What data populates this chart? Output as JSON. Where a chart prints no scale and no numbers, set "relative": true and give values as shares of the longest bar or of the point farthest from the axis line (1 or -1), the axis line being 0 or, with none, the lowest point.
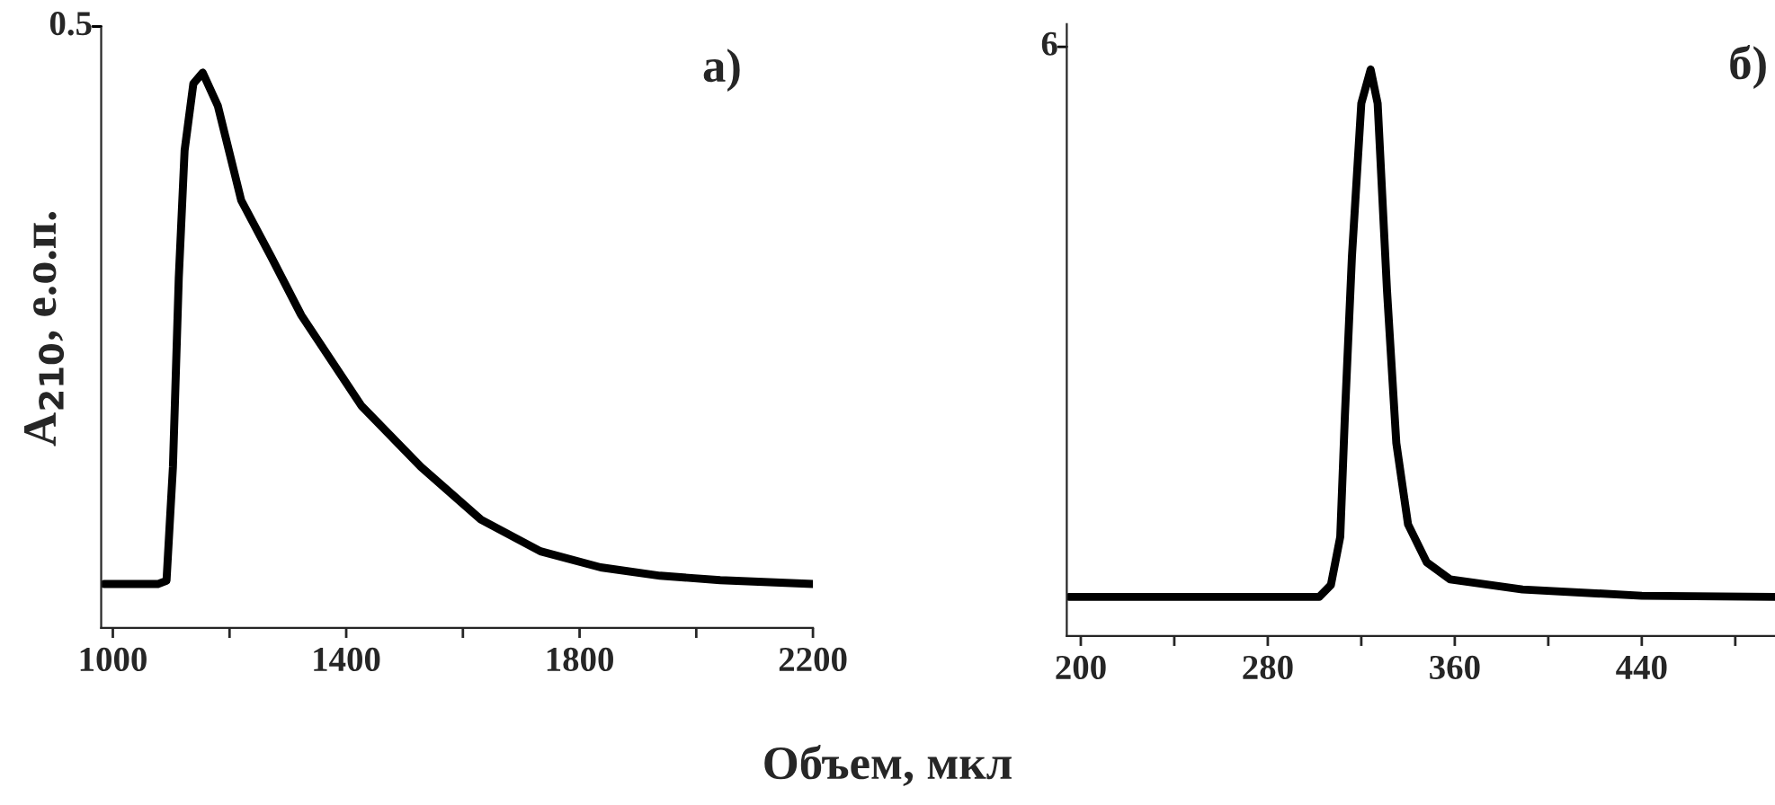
{
  "chart_data": [
    {
      "type": "line",
      "relative": true,
      "ylabel": "A$_{210}$, е.о.п.",
      "xlabel": "Объем, мкл",
      "annotations": [
        "0.5",
        "а)"
      ],
      "xlim": [
        980,
        2200
      ],
      "xticks": [
        1000,
        {
          "value": 1200,
          "label": null
        },
        1400,
        {
          "value": 1600,
          "label": null
        },
        1800,
        {
          "value": 2000,
          "label": null
        },
        2200
      ],
      "series": [
        {
          "color": "#000000",
          "x": [
            985,
            1077,
            1092,
            1103,
            1113,
            1123,
            1138,
            1154,
            1180,
            1220,
            1272,
            1323,
            1426,
            1528,
            1631,
            1733,
            1836,
            1938,
            2041,
            2200
          ],
          "values": [
            0.079,
            0.079,
            0.085,
            0.29,
            0.63,
            0.86,
            0.98,
            1.0,
            0.94,
            0.77,
            0.667,
            0.563,
            0.4,
            0.29,
            0.195,
            0.138,
            0.109,
            0.094,
            0.086,
            0.079
          ]
        }
      ],
      "grid": false,
      "legend": false,
      "marker": "none",
      "line_style": "solid"
    },
    {
      "type": "line",
      "relative": true,
      "annotations": [
        "6",
        "б)"
      ],
      "xlim": [
        194,
        497
      ],
      "xticks": [
        200,
        {
          "value": 240,
          "label": null
        },
        280,
        {
          "value": 320,
          "label": null
        },
        360,
        {
          "value": 400,
          "label": null
        },
        440,
        {
          "value": 480,
          "label": null
        }
      ],
      "series": [
        {
          "color": "#000000",
          "x": [
            195,
            302,
            307,
            311,
            313,
            316,
            320,
            324,
            327,
            331,
            335,
            340,
            348,
            358,
            389,
            440,
            497
          ],
          "values": [
            0.069,
            0.069,
            0.09,
            0.175,
            0.39,
            0.67,
            0.94,
            1.0,
            0.94,
            0.61,
            0.34,
            0.197,
            0.13,
            0.1,
            0.082,
            0.071,
            0.069
          ]
        }
      ],
      "grid": false,
      "legend": false,
      "marker": "none",
      "line_style": "solid"
    }
  ]
}
